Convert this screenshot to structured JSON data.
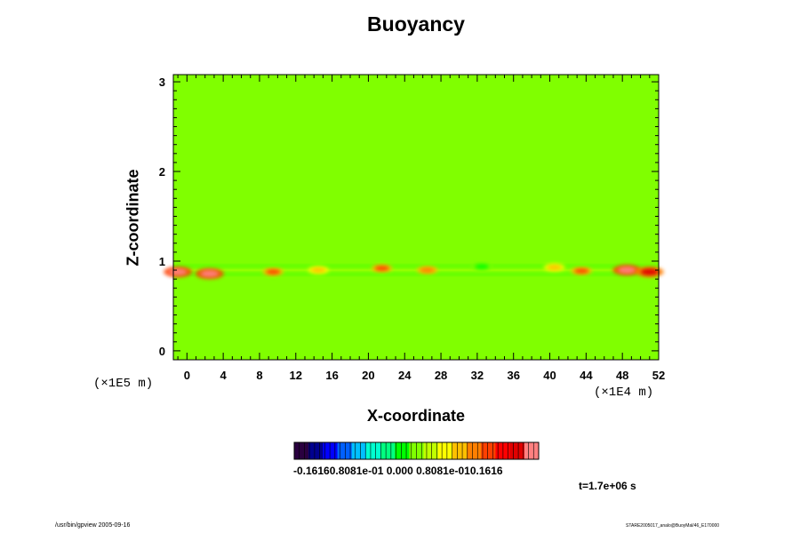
{
  "chart_data": {
    "type": "heatmap",
    "title": "Buoyancy",
    "xlabel": "X-coordinate",
    "ylabel": "Z-coordinate",
    "x_scale_label": "(×1E4 m)",
    "y_scale_label": "(×1E5 m)",
    "xlim": [
      -1.5,
      52
    ],
    "ylim": [
      -0.1,
      3.08
    ],
    "x_ticks": [
      "0",
      "4",
      "8",
      "12",
      "16",
      "20",
      "24",
      "28",
      "32",
      "36",
      "40",
      "44",
      "48",
      "52"
    ],
    "y_ticks": [
      "0",
      "1",
      "2",
      "3"
    ],
    "colorbar": {
      "min": -0.1616,
      "max": 0.1616,
      "labels": "-0.16160.8081e-01 0.000 0.8081e-010.1616",
      "colors": [
        "#2a0040",
        "#000090",
        "#0000ff",
        "#0060ff",
        "#00c0ff",
        "#00ffd0",
        "#00ff80",
        "#00ff00",
        "#80ff00",
        "#c0ff00",
        "#ffff00",
        "#ffc000",
        "#ff8000",
        "#ff4000",
        "#ff0000",
        "#e00000",
        "#ff8080"
      ]
    },
    "background_value": 0.0,
    "features": [
      {
        "x": -1.0,
        "z": 0.88,
        "value": 0.16
      },
      {
        "x": 2.5,
        "z": 0.86,
        "value": 0.155
      },
      {
        "x": 9.5,
        "z": 0.88,
        "value": 0.09
      },
      {
        "x": 14.5,
        "z": 0.9,
        "value": 0.05
      },
      {
        "x": 21.5,
        "z": 0.92,
        "value": 0.1
      },
      {
        "x": 26.5,
        "z": 0.9,
        "value": 0.08
      },
      {
        "x": 32.5,
        "z": 0.94,
        "value": -0.015
      },
      {
        "x": 40.5,
        "z": 0.93,
        "value": 0.06
      },
      {
        "x": 43.5,
        "z": 0.89,
        "value": 0.1
      },
      {
        "x": 48.5,
        "z": 0.9,
        "value": 0.16
      },
      {
        "x": 51.0,
        "z": 0.88,
        "value": 0.14
      }
    ]
  },
  "annotations": {
    "time": "t=1.7e+06 s",
    "footer_left": "/usr/bin/gpview 2005-09-16",
    "footer_right": "STARE2005017_analo@BuoyMal/46_E170000"
  }
}
